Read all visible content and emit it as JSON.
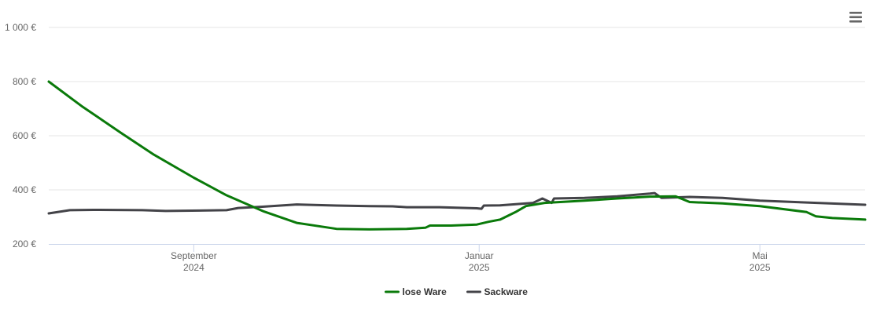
{
  "colors": {
    "background": "#ffffff",
    "grid": "#e6e6e6",
    "axis": "#ccd6eb",
    "lose_ware": "#0a7a0a",
    "sackware": "#434348",
    "menu": "#666666"
  },
  "menu": {
    "icon": "hamburger-menu-icon"
  },
  "chart_data": {
    "type": "line",
    "y_axis": {
      "ticks": [
        {
          "value": 1000,
          "label": "1 000 €"
        },
        {
          "value": 800,
          "label": "800 €"
        },
        {
          "value": 600,
          "label": "600 €"
        },
        {
          "value": 400,
          "label": "400 €"
        },
        {
          "value": 200,
          "label": "200 €"
        }
      ],
      "ylim": [
        200,
        1000
      ],
      "grid": true
    },
    "x_axis": {
      "range": [
        "2024-07-01",
        "2025-06-15"
      ],
      "ticks": [
        {
          "date": "2024-09-01",
          "label": "September",
          "sublabel": "2024"
        },
        {
          "date": "2025-01-01",
          "label": "Januar",
          "sublabel": "2025"
        },
        {
          "date": "2025-05-01",
          "label": "Mai",
          "sublabel": "2025"
        }
      ]
    },
    "legend": {
      "position": "bottom-center"
    },
    "series": [
      {
        "name": "lose Ware",
        "color": "#0a7a0a",
        "points": [
          [
            "2024-07-01",
            800
          ],
          [
            "2024-07-15",
            710
          ],
          [
            "2024-08-01",
            610
          ],
          [
            "2024-08-15",
            530
          ],
          [
            "2024-09-01",
            445
          ],
          [
            "2024-09-15",
            380
          ],
          [
            "2024-10-01",
            320
          ],
          [
            "2024-10-15",
            278
          ],
          [
            "2024-11-01",
            256
          ],
          [
            "2024-11-15",
            254
          ],
          [
            "2024-12-01",
            256
          ],
          [
            "2024-12-09",
            260
          ],
          [
            "2024-12-11",
            268
          ],
          [
            "2024-12-20",
            268
          ],
          [
            "2024-12-31",
            272
          ],
          [
            "2025-01-05",
            282
          ],
          [
            "2025-01-10",
            290
          ],
          [
            "2025-01-17",
            320
          ],
          [
            "2025-01-21",
            340
          ],
          [
            "2025-01-29",
            352
          ],
          [
            "2025-02-15",
            360
          ],
          [
            "2025-03-01",
            368
          ],
          [
            "2025-03-15",
            375
          ],
          [
            "2025-03-26",
            376
          ],
          [
            "2025-04-01",
            355
          ],
          [
            "2025-04-15",
            350
          ],
          [
            "2025-05-01",
            340
          ],
          [
            "2025-05-21",
            318
          ],
          [
            "2025-05-25",
            302
          ],
          [
            "2025-06-01",
            296
          ],
          [
            "2025-06-15",
            290
          ]
        ]
      },
      {
        "name": "Sackware",
        "color": "#434348",
        "points": [
          [
            "2024-07-01",
            313
          ],
          [
            "2024-07-10",
            325
          ],
          [
            "2024-07-20",
            326
          ],
          [
            "2024-08-10",
            325
          ],
          [
            "2024-08-20",
            322
          ],
          [
            "2024-09-15",
            325
          ],
          [
            "2024-09-20",
            333
          ],
          [
            "2024-10-01",
            338
          ],
          [
            "2024-10-15",
            346
          ],
          [
            "2024-11-01",
            342
          ],
          [
            "2024-11-15",
            340
          ],
          [
            "2024-11-25",
            339
          ],
          [
            "2024-12-01",
            336
          ],
          [
            "2024-12-15",
            336
          ],
          [
            "2024-12-31",
            332
          ],
          [
            "2025-01-02",
            330
          ],
          [
            "2025-01-03",
            342
          ],
          [
            "2025-01-10",
            343
          ],
          [
            "2025-01-24",
            352
          ],
          [
            "2025-01-28",
            368
          ],
          [
            "2025-02-01",
            352
          ],
          [
            "2025-02-02",
            368
          ],
          [
            "2025-02-15",
            370
          ],
          [
            "2025-03-01",
            376
          ],
          [
            "2025-03-15",
            386
          ],
          [
            "2025-03-17",
            388
          ],
          [
            "2025-03-20",
            370
          ],
          [
            "2025-04-01",
            374
          ],
          [
            "2025-04-15",
            370
          ],
          [
            "2025-05-01",
            360
          ],
          [
            "2025-06-15",
            345
          ]
        ]
      }
    ]
  }
}
